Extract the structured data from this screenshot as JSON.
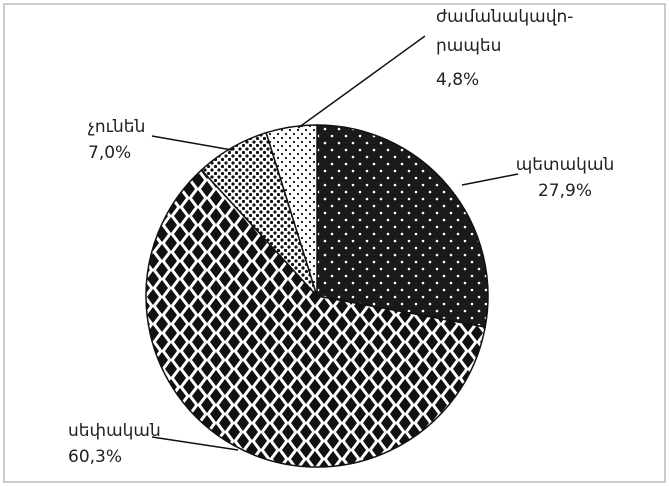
{
  "chart_data": {
    "type": "pie",
    "categories": [
      [
        "պետական"
      ],
      [
        "սեփական"
      ],
      [
        "չունեն"
      ],
      [
        "ժամանակավո-",
        "րապես"
      ]
    ],
    "values": [
      27.9,
      60.3,
      7.0,
      4.8
    ],
    "value_labels": [
      "27,9%",
      "60,3%",
      "7,0%",
      "4,8%"
    ]
  }
}
